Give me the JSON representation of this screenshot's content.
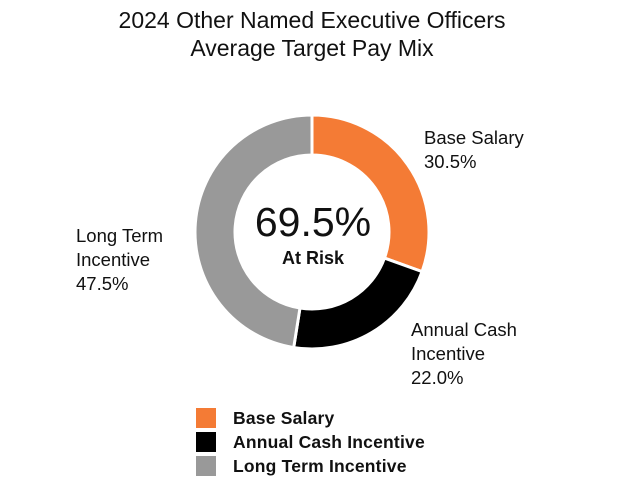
{
  "chart_data": {
    "type": "pie",
    "donut": true,
    "title": [
      "2024 Other Named Executive Officers",
      "Average Target Pay Mix"
    ],
    "center_value": "69.5%",
    "center_label": "At Risk",
    "slices": [
      {
        "name": "Base Salary",
        "label_lines": [
          "Base Salary"
        ],
        "value": 30.5,
        "value_label": "30.5%",
        "color": "#f47b35"
      },
      {
        "name": "Annual Cash Incentive",
        "label_lines": [
          "Annual Cash",
          "Incentive"
        ],
        "value": 22.0,
        "value_label": "22.0%",
        "color": "#000000"
      },
      {
        "name": "Long Term Incentive",
        "label_lines": [
          "Long Term",
          "Incentive"
        ],
        "value": 47.5,
        "value_label": "47.5%",
        "color": "#999999"
      }
    ],
    "legend": [
      "Base Salary",
      "Annual Cash Incentive",
      "Long Term Incentive"
    ],
    "legend_position": "bottom"
  }
}
